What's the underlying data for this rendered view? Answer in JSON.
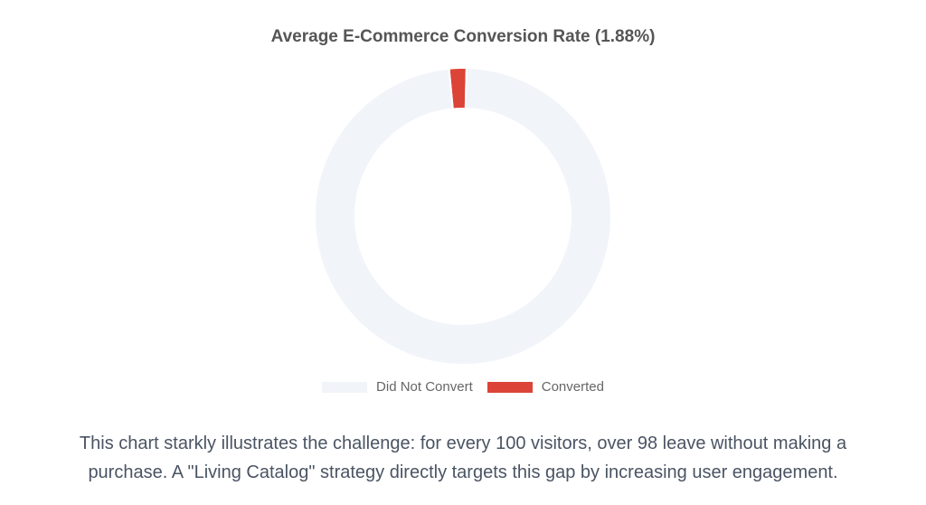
{
  "chart_data": {
    "type": "pie",
    "title": "Average E-Commerce Conversion Rate (1.88%)",
    "categories": [
      "Converted",
      "Did Not Convert"
    ],
    "values": [
      1.88,
      98.12
    ],
    "colors": [
      "#db4437",
      "#f1f4f9"
    ],
    "legend_placement": "bottom",
    "legend_order": [
      "Did Not Convert",
      "Converted"
    ],
    "style": "doughnut"
  },
  "caption": {
    "line1": "This chart starkly illustrates the challenge: for every 100 visitors, over 98 leave without making a",
    "line2": "purchase. A \"Living Catalog\" strategy directly targets this gap by increasing user engagement."
  }
}
